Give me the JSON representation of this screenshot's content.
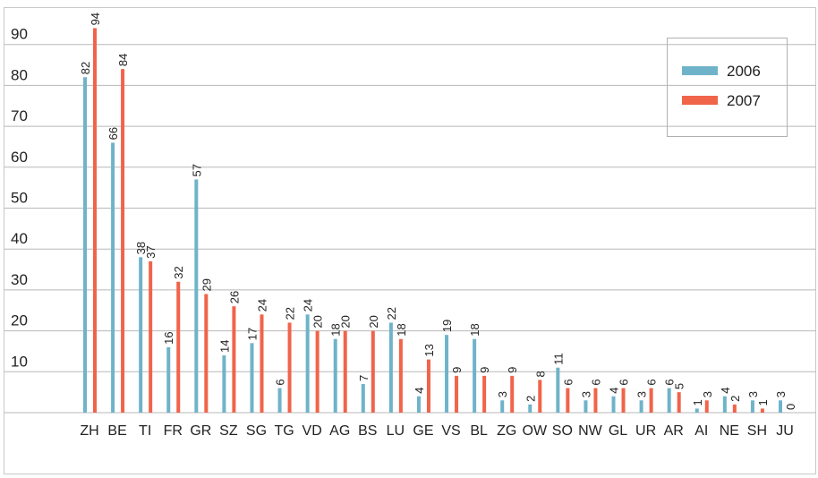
{
  "chart_data": {
    "type": "bar",
    "categories": [
      "ZH",
      "BE",
      "TI",
      "FR",
      "GR",
      "SZ",
      "SG",
      "TG",
      "VD",
      "AG",
      "BS",
      "LU",
      "GE",
      "VS",
      "BL",
      "ZG",
      "OW",
      "SO",
      "NW",
      "GL",
      "UR",
      "AR",
      "AI",
      "NE",
      "SH",
      "JU"
    ],
    "series": [
      {
        "name": "2006",
        "color": "#6fb3c9",
        "values": [
          82,
          66,
          38,
          16,
          57,
          14,
          17,
          6,
          24,
          18,
          7,
          22,
          4,
          19,
          18,
          3,
          2,
          11,
          3,
          4,
          3,
          6,
          1,
          4,
          3,
          3
        ]
      },
      {
        "name": "2007",
        "color": "#f0644a",
        "values": [
          94,
          84,
          37,
          32,
          29,
          26,
          24,
          22,
          20,
          20,
          20,
          18,
          13,
          9,
          9,
          9,
          8,
          6,
          6,
          6,
          6,
          5,
          3,
          2,
          1,
          0
        ]
      }
    ],
    "ylim": [
      0,
      100
    ],
    "yticks": [
      10,
      20,
      30,
      40,
      50,
      60,
      70,
      80,
      90
    ],
    "grid": true,
    "legend": "top-right"
  }
}
